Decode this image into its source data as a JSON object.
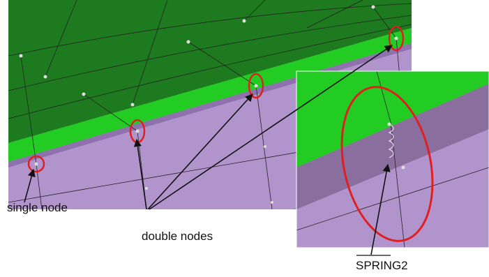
{
  "labels": {
    "single_node": "single node",
    "double_nodes": "double nodes",
    "spring": "SPRING2"
  }
}
